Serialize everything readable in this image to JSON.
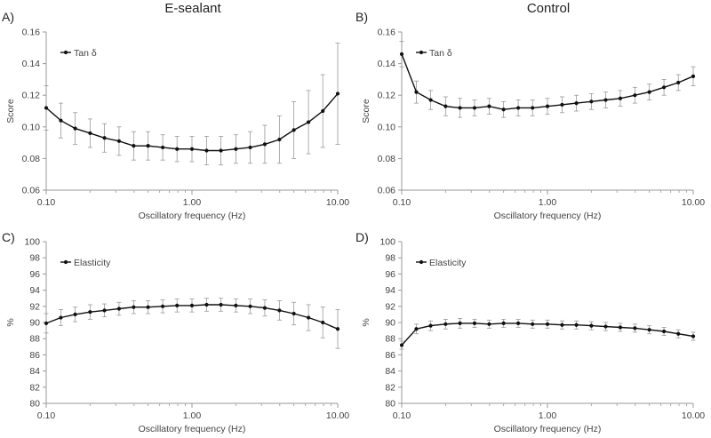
{
  "column_titles": [
    "E-sealant",
    "Control"
  ],
  "chart_data": [
    {
      "panel": "A)",
      "type": "line",
      "xscale": "log",
      "xlim": [
        0.1,
        10
      ],
      "xticks": [
        "0.10",
        "1.00",
        "10.00"
      ],
      "xlabel": "Oscillatory frequency (Hz)",
      "ylabel": "Score",
      "ylim": [
        0.06,
        0.16
      ],
      "yticks": [
        "0.06",
        "0.08",
        "0.10",
        "0.12",
        "0.14",
        "0.16"
      ],
      "legend": "top-left",
      "series": [
        {
          "name": "Tan δ",
          "x": [
            0.1,
            0.126,
            0.158,
            0.2,
            0.251,
            0.316,
            0.398,
            0.5,
            0.63,
            0.79,
            1.0,
            1.26,
            1.58,
            2.0,
            2.51,
            3.16,
            3.98,
            5.0,
            6.3,
            7.9,
            10.0
          ],
          "y": [
            0.112,
            0.104,
            0.099,
            0.096,
            0.093,
            0.091,
            0.088,
            0.088,
            0.087,
            0.086,
            0.086,
            0.085,
            0.085,
            0.086,
            0.087,
            0.089,
            0.092,
            0.098,
            0.103,
            0.11,
            0.121
          ],
          "error": [
            0.014,
            0.011,
            0.01,
            0.009,
            0.009,
            0.009,
            0.009,
            0.009,
            0.008,
            0.008,
            0.008,
            0.009,
            0.009,
            0.009,
            0.01,
            0.012,
            0.015,
            0.018,
            0.02,
            0.023,
            0.032
          ]
        }
      ]
    },
    {
      "panel": "B)",
      "type": "line",
      "xscale": "log",
      "xlim": [
        0.1,
        10
      ],
      "xticks": [
        "0.10",
        "1.00",
        "10.00"
      ],
      "xlabel": "Oscillatory frequency (Hz)",
      "ylabel": "Score",
      "ylim": [
        0.06,
        0.16
      ],
      "yticks": [
        "0.06",
        "0.08",
        "0.10",
        "0.12",
        "0.14",
        "0.16"
      ],
      "legend": "top-left",
      "series": [
        {
          "name": "Tan δ",
          "x": [
            0.1,
            0.126,
            0.158,
            0.2,
            0.251,
            0.316,
            0.398,
            0.5,
            0.63,
            0.79,
            1.0,
            1.26,
            1.58,
            2.0,
            2.51,
            3.16,
            3.98,
            5.0,
            6.3,
            7.9,
            10.0
          ],
          "y": [
            0.146,
            0.122,
            0.117,
            0.113,
            0.112,
            0.112,
            0.113,
            0.111,
            0.112,
            0.112,
            0.113,
            0.114,
            0.115,
            0.116,
            0.117,
            0.118,
            0.12,
            0.122,
            0.125,
            0.128,
            0.132
          ],
          "error": [
            0.008,
            0.007,
            0.006,
            0.006,
            0.006,
            0.005,
            0.005,
            0.005,
            0.005,
            0.005,
            0.005,
            0.005,
            0.005,
            0.005,
            0.005,
            0.005,
            0.005,
            0.005,
            0.005,
            0.005,
            0.006
          ]
        }
      ]
    },
    {
      "panel": "C)",
      "type": "line",
      "xscale": "log",
      "xlim": [
        0.1,
        10
      ],
      "xticks": [
        "0.10",
        "1.00",
        "10.00"
      ],
      "xlabel": "Oscillatory frequency (Hz)",
      "ylabel": "%",
      "ylim": [
        80,
        100
      ],
      "yticks": [
        "80",
        "82",
        "84",
        "86",
        "88",
        "90",
        "92",
        "94",
        "96",
        "98",
        "100"
      ],
      "legend": "top-left",
      "series": [
        {
          "name": "Elasticity",
          "x": [
            0.1,
            0.126,
            0.158,
            0.2,
            0.251,
            0.316,
            0.398,
            0.5,
            0.63,
            0.79,
            1.0,
            1.26,
            1.58,
            2.0,
            2.51,
            3.16,
            3.98,
            5.0,
            6.3,
            7.9,
            10.0
          ],
          "y": [
            89.9,
            90.6,
            91.0,
            91.3,
            91.5,
            91.7,
            91.9,
            91.9,
            92.0,
            92.1,
            92.1,
            92.2,
            92.2,
            92.1,
            92.0,
            91.8,
            91.5,
            91.1,
            90.6,
            90.0,
            89.2
          ],
          "error": [
            1.2,
            1.0,
            0.9,
            0.9,
            0.8,
            0.8,
            0.8,
            0.8,
            0.8,
            0.8,
            0.8,
            0.8,
            0.8,
            0.8,
            0.9,
            1.0,
            1.2,
            1.4,
            1.6,
            1.9,
            2.4
          ]
        }
      ]
    },
    {
      "panel": "D)",
      "type": "line",
      "xscale": "log",
      "xlim": [
        0.1,
        10
      ],
      "xticks": [
        "0.10",
        "1.00",
        "10.00"
      ],
      "xlabel": "Oscillatory frequency (Hz)",
      "ylabel": "%",
      "ylim": [
        80,
        100
      ],
      "yticks": [
        "80",
        "82",
        "84",
        "86",
        "88",
        "90",
        "92",
        "94",
        "96",
        "98",
        "100"
      ],
      "legend": "top-left",
      "series": [
        {
          "name": "Elasticity",
          "x": [
            0.1,
            0.126,
            0.158,
            0.2,
            0.251,
            0.316,
            0.398,
            0.5,
            0.63,
            0.79,
            1.0,
            1.26,
            1.58,
            2.0,
            2.51,
            3.16,
            3.98,
            5.0,
            6.3,
            7.9,
            10.0
          ],
          "y": [
            87.2,
            89.2,
            89.6,
            89.8,
            89.9,
            89.9,
            89.8,
            89.9,
            89.9,
            89.8,
            89.8,
            89.7,
            89.7,
            89.6,
            89.5,
            89.4,
            89.3,
            89.1,
            88.9,
            88.6,
            88.3
          ],
          "error": [
            0.5,
            0.6,
            0.6,
            0.6,
            0.6,
            0.5,
            0.5,
            0.5,
            0.5,
            0.5,
            0.5,
            0.5,
            0.5,
            0.5,
            0.5,
            0.5,
            0.5,
            0.5,
            0.5,
            0.5,
            0.5
          ]
        }
      ]
    }
  ]
}
